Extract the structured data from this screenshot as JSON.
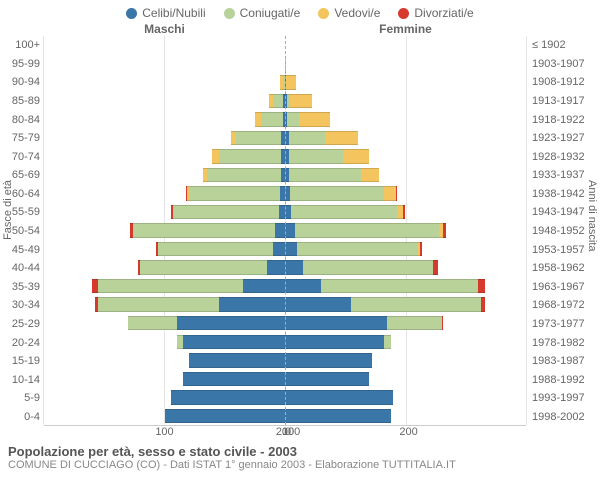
{
  "colors": {
    "celibi": "#3a76a8",
    "coniugati": "#b8d29a",
    "vedovi": "#f4c55f",
    "divorziati": "#d63a2c",
    "grid": "#e5e5e5",
    "centerline": "#aaaaaa",
    "text": "#666666",
    "bg": "#ffffff"
  },
  "legend": [
    {
      "key": "celibi",
      "label": "Celibi/Nubili"
    },
    {
      "key": "coniugati",
      "label": "Coniugati/e"
    },
    {
      "key": "vedovi",
      "label": "Vedovi/e"
    },
    {
      "key": "divorziati",
      "label": "Divorziati/e"
    }
  ],
  "header_male": "Maschi",
  "header_female": "Femmine",
  "y_left_title": "Fasce di età",
  "y_right_title": "Anni di nascita",
  "age_labels": [
    "100+",
    "95-99",
    "90-94",
    "85-89",
    "80-84",
    "75-79",
    "70-74",
    "65-69",
    "60-64",
    "55-59",
    "50-54",
    "45-49",
    "40-44",
    "35-39",
    "30-34",
    "25-29",
    "20-24",
    "15-19",
    "10-14",
    "5-9",
    "0-4"
  ],
  "birth_labels": [
    "≤ 1902",
    "1903-1907",
    "1908-1912",
    "1913-1917",
    "1918-1922",
    "1923-1927",
    "1928-1932",
    "1933-1937",
    "1938-1942",
    "1943-1947",
    "1948-1952",
    "1953-1957",
    "1958-1962",
    "1963-1967",
    "1968-1972",
    "1973-1977",
    "1978-1982",
    "1983-1987",
    "1988-1992",
    "1993-1997",
    "1998-2002"
  ],
  "x_max": 200,
  "x_ticks": [
    0,
    100,
    200
  ],
  "male": [
    {
      "c": 0,
      "m": 0,
      "v": 0,
      "d": 0
    },
    {
      "c": 0,
      "m": 0,
      "v": 0,
      "d": 0
    },
    {
      "c": 0,
      "m": 2,
      "v": 2,
      "d": 0
    },
    {
      "c": 2,
      "m": 8,
      "v": 3,
      "d": 0
    },
    {
      "c": 2,
      "m": 18,
      "v": 5,
      "d": 0
    },
    {
      "c": 3,
      "m": 38,
      "v": 4,
      "d": 0
    },
    {
      "c": 3,
      "m": 52,
      "v": 6,
      "d": 0
    },
    {
      "c": 3,
      "m": 62,
      "v": 3,
      "d": 0
    },
    {
      "c": 4,
      "m": 75,
      "v": 2,
      "d": 1
    },
    {
      "c": 5,
      "m": 88,
      "v": 0,
      "d": 2
    },
    {
      "c": 8,
      "m": 118,
      "v": 0,
      "d": 3
    },
    {
      "c": 10,
      "m": 95,
      "v": 0,
      "d": 2
    },
    {
      "c": 15,
      "m": 105,
      "v": 0,
      "d": 2
    },
    {
      "c": 35,
      "m": 120,
      "v": 0,
      "d": 5
    },
    {
      "c": 55,
      "m": 100,
      "v": 0,
      "d": 3
    },
    {
      "c": 90,
      "m": 40,
      "v": 0,
      "d": 0
    },
    {
      "c": 85,
      "m": 5,
      "v": 0,
      "d": 0
    },
    {
      "c": 80,
      "m": 0,
      "v": 0,
      "d": 0
    },
    {
      "c": 85,
      "m": 0,
      "v": 0,
      "d": 0
    },
    {
      "c": 95,
      "m": 0,
      "v": 0,
      "d": 0
    },
    {
      "c": 100,
      "m": 0,
      "v": 0,
      "d": 0
    }
  ],
  "female": [
    {
      "c": 0,
      "m": 0,
      "v": 0,
      "d": 0
    },
    {
      "c": 0,
      "m": 0,
      "v": 1,
      "d": 0
    },
    {
      "c": 1,
      "m": 0,
      "v": 8,
      "d": 0
    },
    {
      "c": 2,
      "m": 2,
      "v": 18,
      "d": 0
    },
    {
      "c": 2,
      "m": 10,
      "v": 25,
      "d": 0
    },
    {
      "c": 3,
      "m": 30,
      "v": 28,
      "d": 0
    },
    {
      "c": 3,
      "m": 45,
      "v": 22,
      "d": 0
    },
    {
      "c": 3,
      "m": 60,
      "v": 15,
      "d": 0
    },
    {
      "c": 4,
      "m": 78,
      "v": 10,
      "d": 1
    },
    {
      "c": 5,
      "m": 88,
      "v": 5,
      "d": 2
    },
    {
      "c": 8,
      "m": 120,
      "v": 3,
      "d": 3
    },
    {
      "c": 10,
      "m": 100,
      "v": 2,
      "d": 2
    },
    {
      "c": 15,
      "m": 108,
      "v": 0,
      "d": 4
    },
    {
      "c": 30,
      "m": 130,
      "v": 0,
      "d": 6
    },
    {
      "c": 55,
      "m": 108,
      "v": 0,
      "d": 3
    },
    {
      "c": 85,
      "m": 45,
      "v": 0,
      "d": 1
    },
    {
      "c": 82,
      "m": 6,
      "v": 0,
      "d": 0
    },
    {
      "c": 72,
      "m": 0,
      "v": 0,
      "d": 0
    },
    {
      "c": 70,
      "m": 0,
      "v": 0,
      "d": 0
    },
    {
      "c": 90,
      "m": 0,
      "v": 0,
      "d": 0
    },
    {
      "c": 88,
      "m": 0,
      "v": 0,
      "d": 0
    }
  ],
  "caption_title": "Popolazione per età, sesso e stato civile - 2003",
  "caption_sub": "COMUNE DI CUCCIAGO (CO) - Dati ISTAT 1° gennaio 2003 - Elaborazione TUTTITALIA.IT"
}
